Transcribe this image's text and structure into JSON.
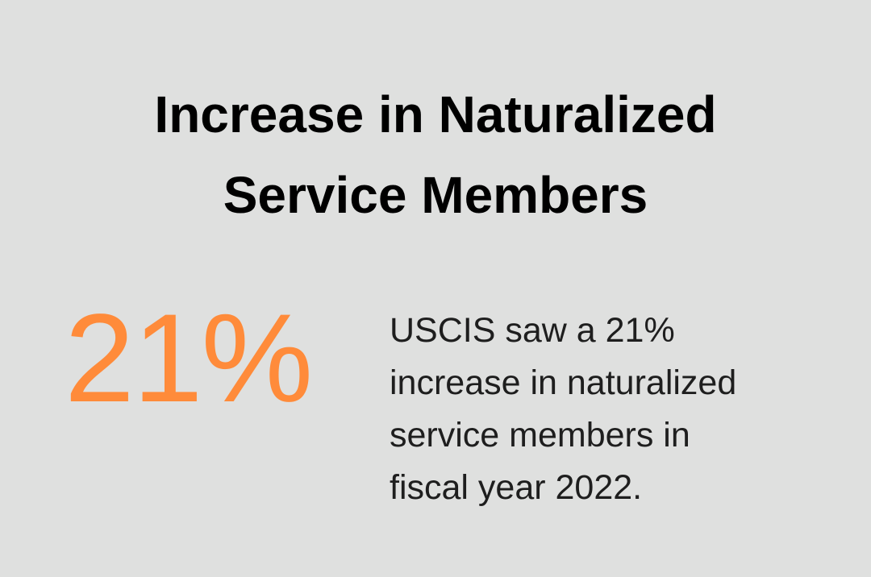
{
  "title": [
    "Increase in Naturalized",
    "Service Members"
  ],
  "stat": {
    "value": "21%",
    "color": "#ff8b3a"
  },
  "description": [
    "USCIS saw a 21%",
    "increase in naturalized",
    "service members in",
    "fiscal year 2022."
  ],
  "background_color": "#dfe0df"
}
